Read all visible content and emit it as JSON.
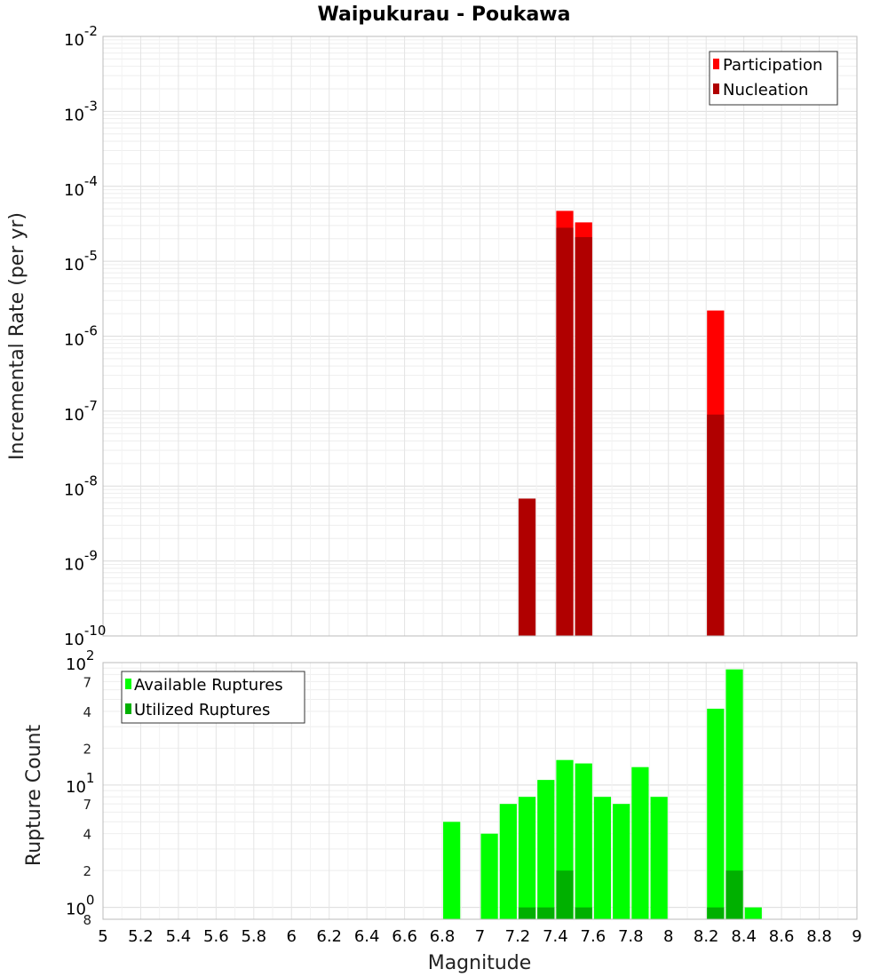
{
  "chart_data": [
    {
      "type": "bar",
      "title": "Waipukurau - Poukawa",
      "xlabel": "",
      "ylabel": "Incremental Rate (per yr)",
      "yscale": "log",
      "ylim": [
        1e-10,
        0.01
      ],
      "y_ticks": [
        {
          "base": "10",
          "exp": "-2"
        },
        {
          "base": "10",
          "exp": "-3"
        },
        {
          "base": "10",
          "exp": "-4"
        },
        {
          "base": "10",
          "exp": "-5"
        },
        {
          "base": "10",
          "exp": "-6"
        },
        {
          "base": "10",
          "exp": "-7"
        },
        {
          "base": "10",
          "exp": "-8"
        },
        {
          "base": "10",
          "exp": "-9"
        },
        {
          "base": "10",
          "exp": "-10"
        }
      ],
      "legend": "top-right",
      "grid": true,
      "series": [
        {
          "name": "Participation",
          "color": "#ff0000",
          "points": [
            {
              "x": 7.45,
              "y": 4.7e-05
            },
            {
              "x": 7.55,
              "y": 3.3e-05
            },
            {
              "x": 8.25,
              "y": 2.2e-06
            }
          ]
        },
        {
          "name": "Nucleation",
          "color": "#b00000",
          "points": [
            {
              "x": 7.25,
              "y": 6.8e-09
            },
            {
              "x": 7.45,
              "y": 2.8e-05
            },
            {
              "x": 7.55,
              "y": 2.1e-05
            },
            {
              "x": 8.25,
              "y": 9e-08
            }
          ]
        }
      ]
    },
    {
      "type": "bar",
      "title": "",
      "xlabel": "Magnitude",
      "ylabel": "Rupture Count",
      "yscale": "log",
      "ylim": [
        0.8,
        100
      ],
      "xlim": [
        5,
        9
      ],
      "x_tick_labels": [
        "5",
        "5.2",
        "5.4",
        "5.6",
        "5.8",
        "6",
        "6.2",
        "6.4",
        "6.6",
        "6.8",
        "7",
        "7.2",
        "7.4",
        "7.6",
        "7.8",
        "8",
        "8.2",
        "8.4",
        "8.6",
        "8.8",
        "9"
      ],
      "y_major_ticks": [
        {
          "base": "10",
          "exp": "2"
        },
        {
          "base": "10",
          "exp": "1"
        },
        {
          "base": "10",
          "exp": "0"
        }
      ],
      "y_minor_labels": [
        "7",
        "4",
        "2",
        "7",
        "4",
        "2",
        "8"
      ],
      "legend": "top-left",
      "grid": true,
      "series": [
        {
          "name": "Available Ruptures",
          "color": "#00ff00",
          "points": [
            {
              "x": 6.85,
              "y": 5
            },
            {
              "x": 7.05,
              "y": 4
            },
            {
              "x": 7.15,
              "y": 7
            },
            {
              "x": 7.25,
              "y": 8
            },
            {
              "x": 7.35,
              "y": 11
            },
            {
              "x": 7.45,
              "y": 16
            },
            {
              "x": 7.55,
              "y": 15
            },
            {
              "x": 7.65,
              "y": 8
            },
            {
              "x": 7.75,
              "y": 7
            },
            {
              "x": 7.85,
              "y": 14
            },
            {
              "x": 7.95,
              "y": 8
            },
            {
              "x": 8.25,
              "y": 42
            },
            {
              "x": 8.35,
              "y": 88
            },
            {
              "x": 8.45,
              "y": 1
            }
          ]
        },
        {
          "name": "Utilized Ruptures",
          "color": "#00b000",
          "points": [
            {
              "x": 7.25,
              "y": 1
            },
            {
              "x": 7.35,
              "y": 1
            },
            {
              "x": 7.45,
              "y": 2
            },
            {
              "x": 7.55,
              "y": 1
            },
            {
              "x": 8.25,
              "y": 1
            },
            {
              "x": 8.35,
              "y": 2
            }
          ]
        }
      ]
    }
  ]
}
